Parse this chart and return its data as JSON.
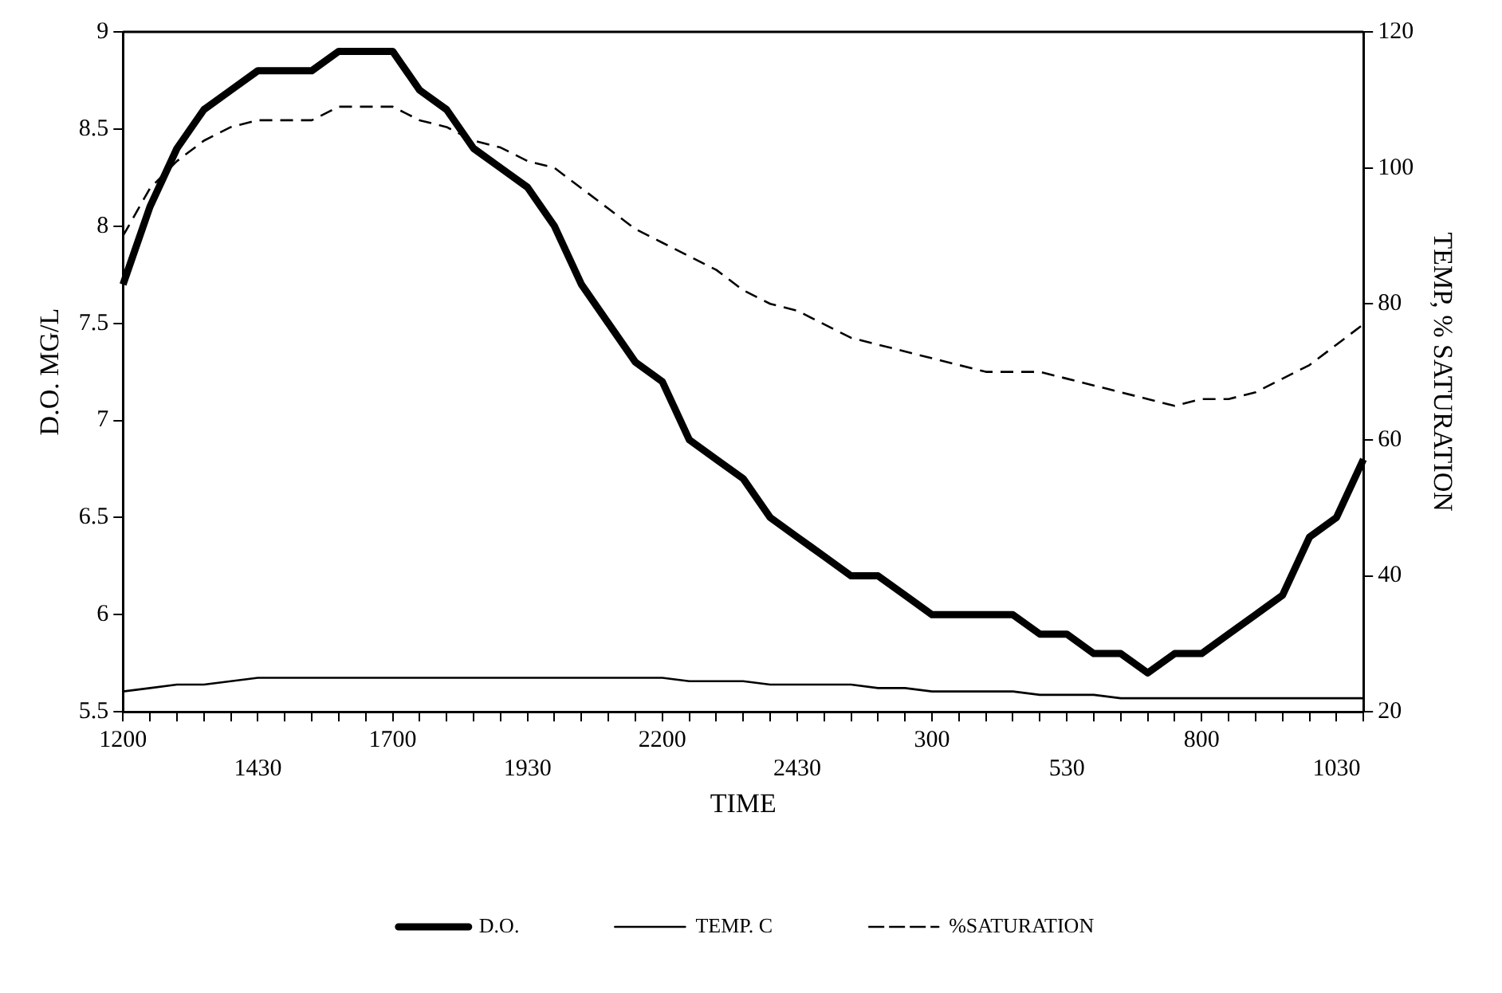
{
  "chart_data": {
    "type": "line",
    "xlabel": "TIME",
    "ylabel": "D.O. MG/L",
    "y2label": "TEMP, % SATURATION",
    "categories": [
      "1200",
      null,
      null,
      null,
      null,
      "1430",
      null,
      null,
      null,
      null,
      "1700",
      null,
      null,
      null,
      null,
      "1930",
      null,
      null,
      null,
      null,
      "2200",
      null,
      null,
      null,
      null,
      "2430",
      null,
      null,
      null,
      null,
      "300",
      null,
      null,
      null,
      null,
      "530",
      null,
      null,
      null,
      null,
      "800",
      null,
      null,
      null,
      null,
      "1030",
      null
    ],
    "series": [
      {
        "name": "D.O.",
        "color": "#000000",
        "line_style": "solid",
        "values": [
          7.7,
          8.1,
          8.4,
          8.6,
          8.7,
          8.8,
          8.8,
          8.8,
          8.9,
          8.9,
          8.9,
          8.7,
          8.6,
          8.4,
          8.3,
          8.2,
          8.0,
          7.7,
          7.5,
          7.3,
          7.2,
          6.9,
          6.8,
          6.7,
          6.5,
          6.4,
          6.3,
          6.2,
          6.2,
          6.1,
          6.0,
          6.0,
          6.0,
          6.0,
          5.9,
          5.9,
          5.8,
          5.8,
          5.7,
          5.8,
          5.8,
          5.9,
          6.0,
          6.1,
          6.4,
          6.5,
          6.8
        ]
      },
      {
        "name": "TEMP. C",
        "color": "#000000",
        "line_style": "solid",
        "axis": "y2",
        "values": [
          23,
          23.5,
          24,
          24,
          24.5,
          25,
          25,
          25,
          25,
          25,
          25,
          25,
          25,
          25,
          25,
          25,
          25,
          25,
          25,
          25,
          25,
          24.5,
          24.5,
          24.5,
          24,
          24,
          24,
          24,
          23.5,
          23.5,
          23,
          23,
          23,
          23,
          22.5,
          22.5,
          22.5,
          22,
          22,
          22,
          22,
          22,
          22,
          22,
          22,
          22,
          22
        ]
      },
      {
        "name": "%SATURATION",
        "color": "#000000",
        "line_style": "dashed",
        "axis": "y2",
        "values": [
          90,
          97,
          101,
          104,
          106,
          107,
          107,
          107,
          109,
          109,
          109,
          107,
          106,
          104,
          103,
          101,
          100,
          97,
          94,
          91,
          89,
          87,
          85,
          82,
          80,
          79,
          77,
          75,
          74,
          73,
          72,
          71,
          70,
          70,
          70,
          69,
          68,
          67,
          66,
          65,
          66,
          66,
          67,
          69,
          71,
          74,
          77
        ]
      }
    ],
    "ylim": [
      5.5,
      9
    ],
    "yticks": [
      5.5,
      6,
      6.5,
      7,
      7.5,
      8,
      8.5,
      9
    ],
    "y2lim": [
      20,
      120
    ],
    "y2ticks": [
      20,
      40,
      60,
      80,
      100,
      120
    ],
    "grid": false,
    "legend": "bottom",
    "marker": "none"
  }
}
